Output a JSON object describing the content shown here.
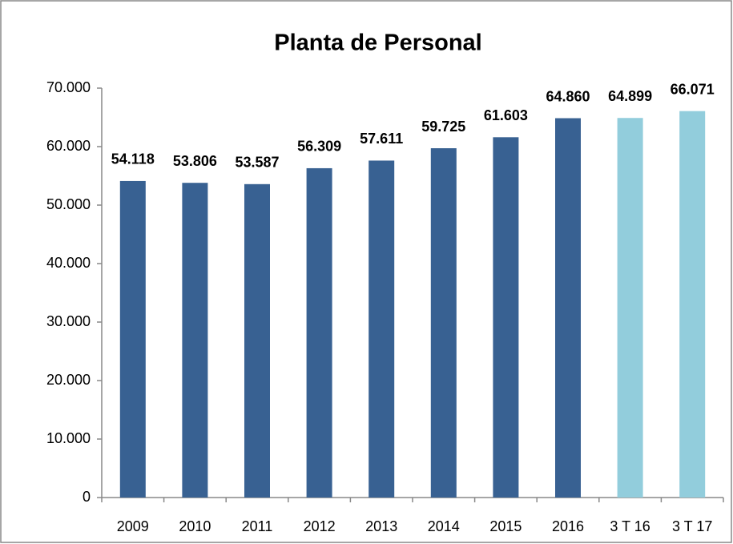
{
  "chart_data": {
    "type": "bar",
    "title": "Planta de Personal",
    "categories": [
      "2009",
      "2010",
      "2011",
      "2012",
      "2013",
      "2014",
      "2015",
      "2016",
      "3 T 16",
      "3 T 17"
    ],
    "values": [
      54118,
      53806,
      53587,
      56309,
      57611,
      59725,
      61603,
      64860,
      64899,
      66071
    ],
    "value_labels": [
      "54.118",
      "53.806",
      "53.587",
      "56.309",
      "57.611",
      "59.725",
      "61.603",
      "64.860",
      "64.899",
      "66.071"
    ],
    "colors": [
      "#386192",
      "#386192",
      "#386192",
      "#386192",
      "#386192",
      "#386192",
      "#386192",
      "#386192",
      "#92cddc",
      "#92cddc"
    ],
    "ylim": [
      0,
      70000
    ],
    "yticks": [
      0,
      {
        "value": 10000,
        "label": "10.000"
      },
      {
        "value": 20000,
        "label": "20.000"
      },
      {
        "value": 30000,
        "label": "30.000"
      },
      {
        "value": 40000,
        "label": "40.000"
      },
      {
        "value": 50000,
        "label": "50.000"
      },
      {
        "value": 60000,
        "label": "60.000"
      },
      {
        "value": 70000,
        "label": "70.000"
      }
    ],
    "grid": false
  }
}
